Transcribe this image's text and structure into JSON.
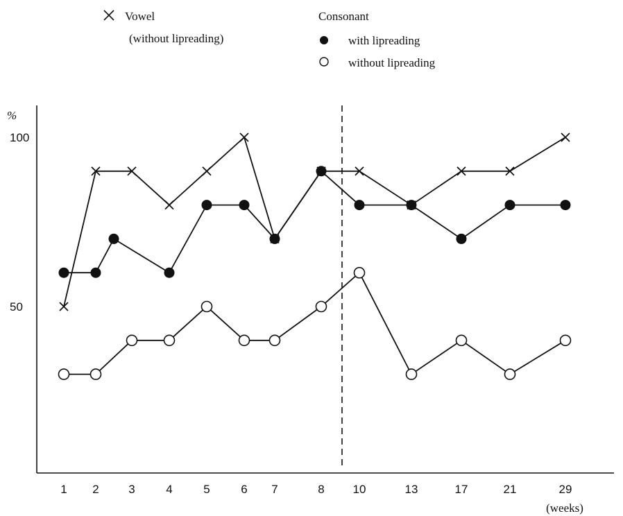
{
  "chart_data": {
    "type": "line",
    "title": "",
    "xlabel": "(weeks)",
    "ylabel": "%",
    "ylim": [
      0,
      100
    ],
    "y_ticks": [
      50,
      100
    ],
    "categories": [
      "1",
      "2",
      "3",
      "4",
      "5",
      "6",
      "7",
      "8",
      "10",
      "13",
      "17",
      "21",
      "29"
    ],
    "divider_after_category": "8",
    "legend": {
      "placement": "top-left",
      "vowel_header": "Vowel",
      "vowel_sub": "(without lipreading)",
      "consonant_header": "Consonant",
      "entries": [
        {
          "marker": "cross",
          "label": "Vowel"
        },
        {
          "marker": "filled-circle",
          "label": "with lipreading"
        },
        {
          "marker": "open-circle",
          "label": "without lipreading"
        }
      ]
    },
    "series": [
      {
        "name": "Vowel (without lipreading)",
        "marker": "cross",
        "points": [
          {
            "x": 1.0,
            "y": 50
          },
          {
            "x": 2.0,
            "y": 90
          },
          {
            "x": 3.0,
            "y": 90
          },
          {
            "x": 4.0,
            "y": 80
          },
          {
            "x": 5.0,
            "y": 90
          },
          {
            "x": 6.0,
            "y": 100
          },
          {
            "x": 7.0,
            "y": 70
          },
          {
            "x": 8.0,
            "y": 90
          },
          {
            "x": 9.0,
            "y": 90
          },
          {
            "x": 10.0,
            "y": 80
          },
          {
            "x": 11.0,
            "y": 90
          },
          {
            "x": 12.0,
            "y": 90
          },
          {
            "x": 13.0,
            "y": 100
          }
        ]
      },
      {
        "name": "Consonant with lipreading",
        "marker": "filled-circle",
        "points": [
          {
            "x": 1.0,
            "y": 60
          },
          {
            "x": 2.0,
            "y": 60
          },
          {
            "x": 2.5,
            "y": 70
          },
          {
            "x": 4.0,
            "y": 60
          },
          {
            "x": 5.0,
            "y": 80
          },
          {
            "x": 6.0,
            "y": 80
          },
          {
            "x": 7.0,
            "y": 70
          },
          {
            "x": 8.0,
            "y": 90
          },
          {
            "x": 9.0,
            "y": 80
          },
          {
            "x": 10.0,
            "y": 80
          },
          {
            "x": 11.0,
            "y": 70
          },
          {
            "x": 12.0,
            "y": 80
          },
          {
            "x": 13.0,
            "y": 80
          }
        ]
      },
      {
        "name": "Consonant without lipreading",
        "marker": "open-circle",
        "points": [
          {
            "x": 1.0,
            "y": 30
          },
          {
            "x": 2.0,
            "y": 30
          },
          {
            "x": 3.0,
            "y": 40
          },
          {
            "x": 4.0,
            "y": 40
          },
          {
            "x": 5.0,
            "y": 50
          },
          {
            "x": 6.0,
            "y": 40
          },
          {
            "x": 7.0,
            "y": 40
          },
          {
            "x": 8.0,
            "y": 50
          },
          {
            "x": 9.0,
            "y": 60
          },
          {
            "x": 10.0,
            "y": 30
          },
          {
            "x": 11.0,
            "y": 40
          },
          {
            "x": 12.0,
            "y": 30
          },
          {
            "x": 13.0,
            "y": 40
          }
        ]
      }
    ]
  }
}
